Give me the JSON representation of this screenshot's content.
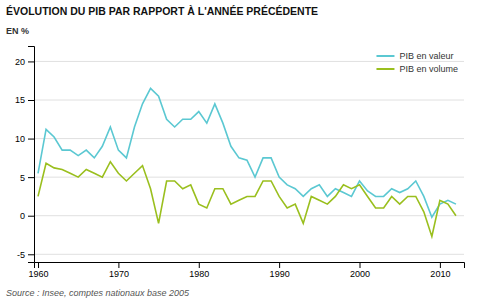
{
  "chart_data": {
    "type": "line",
    "title": "ÉVOLUTION DU PIB PAR RAPPORT À L'ANNÉE PRÉCÉDENTE",
    "ylabel": "EN %",
    "source": "Source : Insee, comptes nationaux base 2005",
    "x": [
      1960,
      1961,
      1962,
      1963,
      1964,
      1965,
      1966,
      1967,
      1968,
      1969,
      1970,
      1971,
      1972,
      1973,
      1974,
      1975,
      1976,
      1977,
      1978,
      1979,
      1980,
      1981,
      1982,
      1983,
      1984,
      1985,
      1986,
      1987,
      1988,
      1989,
      1990,
      1991,
      1992,
      1993,
      1994,
      1995,
      1996,
      1997,
      1998,
      1999,
      2000,
      2001,
      2002,
      2003,
      2004,
      2005,
      2006,
      2007,
      2008,
      2009,
      2010,
      2011,
      2012
    ],
    "series": [
      {
        "name": "PIB en valeur",
        "color": "#5bc8d2",
        "values": [
          5.5,
          11.2,
          10.2,
          8.5,
          8.5,
          7.8,
          8.5,
          7.5,
          9.0,
          11.5,
          8.5,
          7.5,
          11.5,
          14.5,
          16.5,
          15.5,
          12.5,
          11.5,
          12.5,
          12.5,
          13.5,
          12.0,
          14.5,
          12.0,
          9.0,
          7.5,
          7.2,
          5.0,
          7.5,
          7.5,
          5.0,
          4.0,
          3.5,
          2.5,
          3.5,
          4.0,
          2.5,
          3.5,
          3.0,
          2.5,
          4.5,
          3.2,
          2.5,
          2.5,
          3.5,
          3.0,
          3.5,
          4.5,
          2.5,
          -0.2,
          1.5,
          2.0,
          1.5
        ]
      },
      {
        "name": "PIB en volume",
        "color": "#9abf1e",
        "values": [
          2.5,
          6.8,
          6.2,
          6.0,
          5.5,
          5.0,
          6.0,
          5.5,
          5.0,
          7.0,
          5.5,
          4.5,
          5.5,
          6.5,
          3.5,
          -1.0,
          4.5,
          4.5,
          3.5,
          4.0,
          1.5,
          1.0,
          3.5,
          3.5,
          1.5,
          2.0,
          2.5,
          2.5,
          4.5,
          4.5,
          2.5,
          1.0,
          1.5,
          -1.0,
          2.5,
          2.0,
          1.5,
          2.5,
          4.0,
          3.5,
          4.0,
          2.5,
          1.0,
          1.0,
          2.5,
          1.5,
          2.5,
          2.5,
          0.5,
          -2.7,
          2.0,
          1.5,
          0.0
        ]
      }
    ],
    "xlim": [
      1959.5,
      2013.0
    ],
    "xticks": [
      1960,
      1970,
      1980,
      1990,
      2000,
      2010
    ],
    "ylim": [
      -6,
      22
    ],
    "yticks": [
      -5,
      0,
      5,
      10,
      15,
      20
    ],
    "grid": true,
    "legend": "upper right"
  }
}
